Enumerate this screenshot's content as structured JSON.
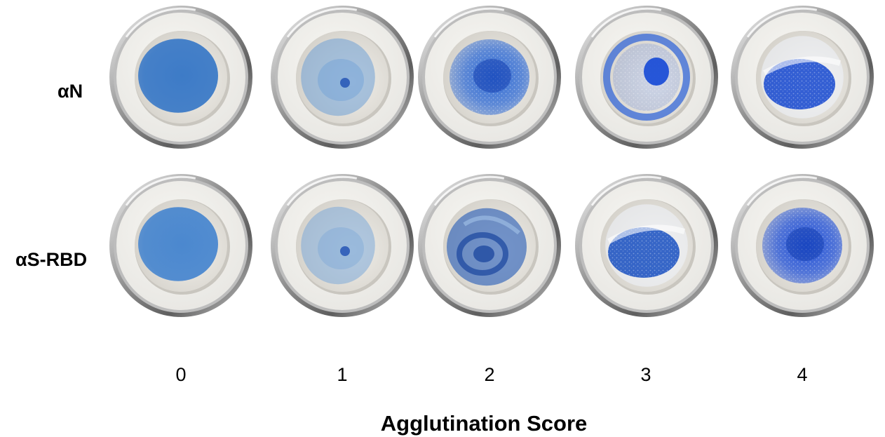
{
  "rows": [
    {
      "label": "αN"
    },
    {
      "label": "αS-RBD"
    }
  ],
  "scores": [
    "0",
    "1",
    "2",
    "3",
    "4"
  ],
  "axis_title": "Agglutination Score",
  "wells": [
    {
      "row": "αN",
      "score": 0,
      "pattern": "uniform",
      "color": "#3d7bc7"
    },
    {
      "row": "αN",
      "score": 1,
      "pattern": "faint-center-dot",
      "color": "#6fa0d6"
    },
    {
      "row": "αN",
      "score": 2,
      "pattern": "speckled-center",
      "color": "#2f6ad4"
    },
    {
      "row": "αN",
      "score": 3,
      "pattern": "ring-with-clump",
      "color": "#2a5fd8"
    },
    {
      "row": "αN",
      "score": 4,
      "pattern": "large-clump-clear-edge",
      "color": "#1f4fcf"
    },
    {
      "row": "αS-RBD",
      "score": 0,
      "pattern": "uniform",
      "color": "#4b88cf"
    },
    {
      "row": "αS-RBD",
      "score": 1,
      "pattern": "faint-center-dot",
      "color": "#7ea9d8"
    },
    {
      "row": "αS-RBD",
      "score": 2,
      "pattern": "swirl",
      "color": "#2f62b8"
    },
    {
      "row": "αS-RBD",
      "score": 3,
      "pattern": "large-clump-clear-edge",
      "color": "#2256c2"
    },
    {
      "row": "αS-RBD",
      "score": 4,
      "pattern": "speckled-center",
      "color": "#1f4fd6"
    }
  ],
  "colors": {
    "rim_dark": "#8e8e8e",
    "rim_light": "#e6e6e6",
    "plate": "#e9e8e4",
    "well_floor": "#d6d3cc"
  }
}
